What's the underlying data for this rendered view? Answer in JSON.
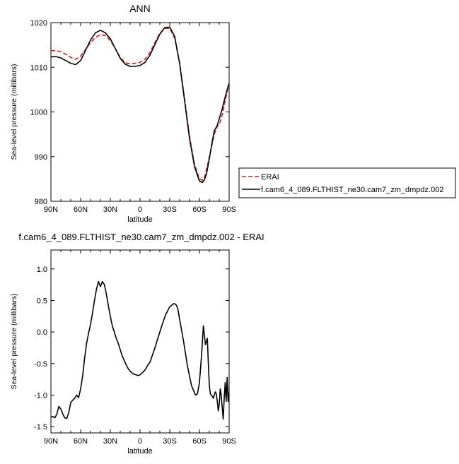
{
  "chart_data": [
    {
      "type": "line",
      "title": "ANN",
      "xlabel": "latitude",
      "ylabel": "Sea-level pressure (millibars)",
      "xlim": [
        90,
        -90
      ],
      "ylim": [
        980,
        1020
      ],
      "xticks": [
        90,
        60,
        30,
        0,
        -30,
        -60,
        -90
      ],
      "xticklabels": [
        "90N",
        "60N",
        "30N",
        "0",
        "30S",
        "60S",
        "90S"
      ],
      "yticks": [
        980,
        990,
        1000,
        1010,
        1020
      ],
      "yticklabels": [
        "980",
        "990",
        "1000",
        "1010",
        "1020"
      ],
      "grid": false,
      "legend_position": "right",
      "series": [
        {
          "name": "ERAI",
          "color": "#dd1c1c",
          "dash": "dashed",
          "x": [
            90,
            85,
            80,
            75,
            70,
            65,
            60,
            55,
            50,
            45,
            40,
            35,
            30,
            25,
            20,
            15,
            10,
            5,
            0,
            -5,
            -10,
            -15,
            -20,
            -25,
            -30,
            -35,
            -40,
            -45,
            -50,
            -55,
            -60,
            -63,
            -65,
            -67,
            -70,
            -73,
            -75,
            -78,
            -80,
            -83,
            -85,
            -88,
            -90
          ],
          "y": [
            1013.7,
            1013.7,
            1013.5,
            1012.9,
            1012.2,
            1011.8,
            1012.5,
            1014.0,
            1015.5,
            1016.7,
            1017.3,
            1017.1,
            1016.0,
            1014.2,
            1012.2,
            1011.0,
            1010.8,
            1010.9,
            1011.1,
            1011.8,
            1013.3,
            1015.5,
            1017.6,
            1018.7,
            1018.7,
            1016.5,
            1011.0,
            1003.0,
            994.5,
            988.3,
            985.0,
            984.7,
            985.4,
            987.0,
            990.0,
            993.0,
            995.0,
            996.8,
            997.2,
            999.3,
            1001.5,
            1004.5,
            1006.5
          ]
        },
        {
          "name": "f.cam6_4_089.FLTHIST_ne30.cam7_zm_dmpdz.002",
          "color": "#000000",
          "dash": "solid",
          "x": [
            90,
            85,
            80,
            75,
            70,
            65,
            60,
            55,
            50,
            45,
            40,
            35,
            30,
            25,
            20,
            15,
            10,
            5,
            0,
            -5,
            -10,
            -15,
            -20,
            -25,
            -30,
            -35,
            -40,
            -45,
            -50,
            -55,
            -60,
            -63,
            -65,
            -67,
            -70,
            -73,
            -75,
            -78,
            -80,
            -83,
            -85,
            -88,
            -90
          ],
          "y": [
            1012.3,
            1012.4,
            1012.1,
            1011.5,
            1010.9,
            1010.6,
            1011.5,
            1013.8,
            1016.1,
            1017.7,
            1018.3,
            1017.7,
            1016.4,
            1014.2,
            1012.0,
            1010.7,
            1010.2,
            1010.2,
            1010.4,
            1011.1,
            1012.7,
            1015.1,
            1017.4,
            1018.9,
            1019.0,
            1016.9,
            1010.8,
            1002.5,
            994.0,
            987.8,
            984.5,
            984.2,
            984.8,
            986.0,
            989.5,
            993.5,
            995.8,
            997.0,
            998.5,
            1000.7,
            1002.5,
            1005.0,
            1006.5
          ]
        }
      ]
    },
    {
      "type": "line",
      "title": "f.cam6_4_089.FLTHIST_ne30.cam7_zm_dmpdz.002 - ERAI",
      "xlabel": "latitude",
      "ylabel": "Sea-level pressure (millibars)",
      "xlim": [
        90,
        -90
      ],
      "ylim": [
        -1.6,
        1.3
      ],
      "xticks": [
        90,
        60,
        30,
        0,
        -30,
        -60,
        -90
      ],
      "xticklabels": [
        "90N",
        "60N",
        "30N",
        "0",
        "30S",
        "60S",
        "90S"
      ],
      "yticks": [
        -1.5,
        -1.0,
        -0.5,
        0.0,
        0.5,
        1.0
      ],
      "yticklabels": [
        "-1.5",
        "-1.0",
        "-0.5",
        "0.0",
        "0.5",
        "1.0"
      ],
      "grid": false,
      "series": [
        {
          "color": "#000000",
          "dash": "solid",
          "x": [
            90,
            88,
            86,
            84,
            82,
            80,
            78,
            76,
            74,
            72,
            70,
            68,
            66,
            64,
            62,
            60,
            58,
            56,
            54,
            52,
            50,
            48,
            46,
            44,
            42,
            40,
            38,
            36,
            34,
            32,
            30,
            28,
            26,
            24,
            22,
            20,
            18,
            16,
            14,
            12,
            10,
            8,
            6,
            4,
            2,
            0,
            -2,
            -4,
            -6,
            -8,
            -10,
            -14,
            -18,
            -22,
            -26,
            -30,
            -34,
            -36,
            -38,
            -40,
            -44,
            -48,
            -52,
            -56,
            -58,
            -60,
            -62,
            -64,
            -66,
            -68,
            -69,
            -70,
            -71,
            -72,
            -73,
            -74,
            -75,
            -76,
            -77,
            -78,
            -79,
            -80,
            -81,
            -82,
            -83,
            -84,
            -85,
            -86,
            -87,
            -88,
            -89,
            -90
          ],
          "y": [
            -1.35,
            -1.34,
            -1.36,
            -1.3,
            -1.18,
            -1.22,
            -1.3,
            -1.36,
            -1.37,
            -1.28,
            -1.12,
            -1.08,
            -1.05,
            -1.0,
            -1.04,
            -0.9,
            -0.7,
            -0.42,
            -0.18,
            -0.02,
            0.12,
            0.3,
            0.5,
            0.68,
            0.8,
            0.72,
            0.8,
            0.75,
            0.6,
            0.42,
            0.25,
            0.1,
            0.0,
            -0.1,
            -0.18,
            -0.28,
            -0.38,
            -0.45,
            -0.52,
            -0.58,
            -0.62,
            -0.65,
            -0.67,
            -0.68,
            -0.69,
            -0.68,
            -0.65,
            -0.62,
            -0.58,
            -0.52,
            -0.48,
            -0.3,
            -0.1,
            0.1,
            0.28,
            0.4,
            0.45,
            0.44,
            0.38,
            0.2,
            -0.15,
            -0.55,
            -0.85,
            -1.0,
            -0.98,
            -0.8,
            -0.4,
            0.1,
            -0.2,
            -0.1,
            -0.5,
            -0.85,
            -0.98,
            -1.0,
            -1.02,
            -1.05,
            -1.0,
            -0.95,
            -0.98,
            -1.1,
            -1.25,
            -1.15,
            -0.9,
            -1.0,
            -1.2,
            -1.38,
            -1.05,
            -0.8,
            -1.1,
            -0.72,
            -1.1,
            -0.95
          ]
        }
      ]
    }
  ]
}
